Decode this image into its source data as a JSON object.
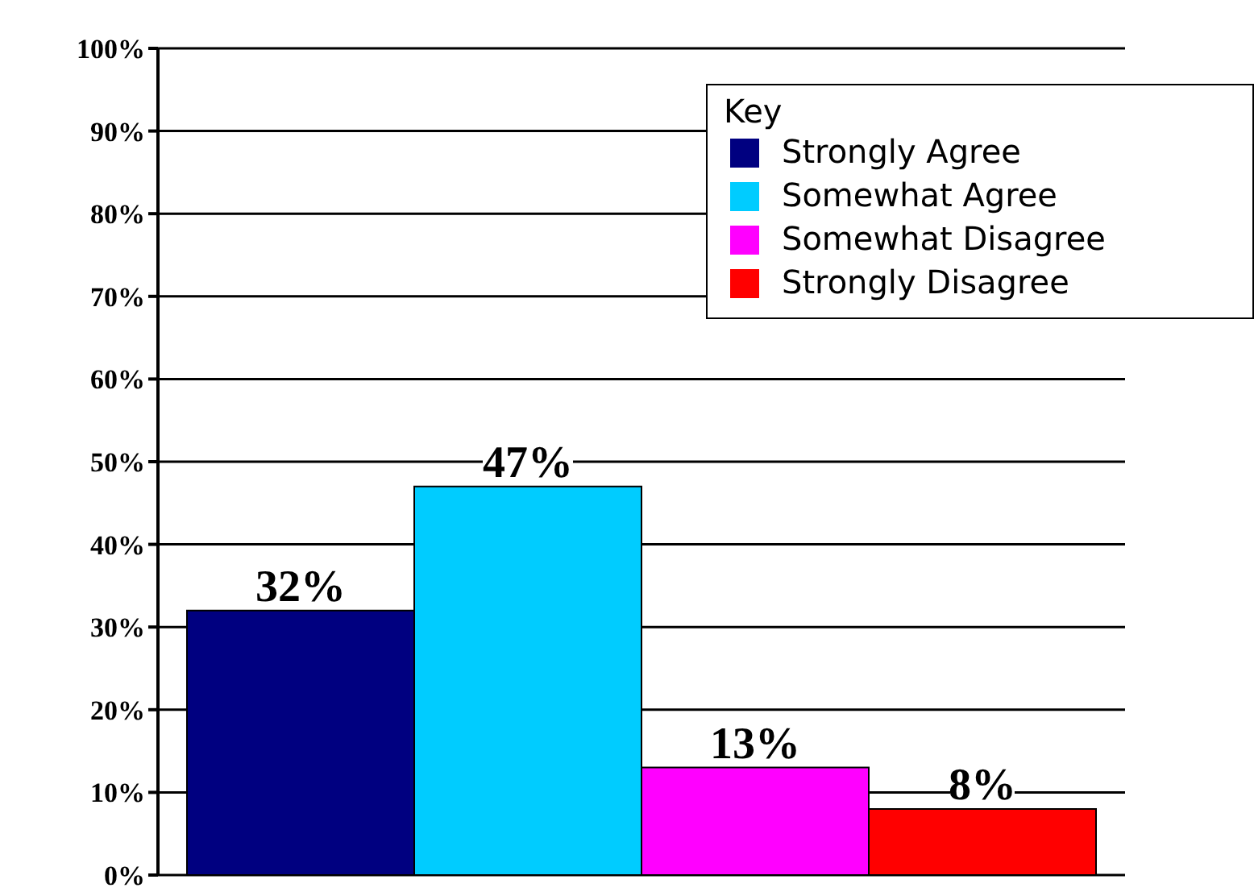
{
  "chart_data": {
    "type": "bar",
    "categories": [
      null
    ],
    "legend_title": "Key",
    "legend": "top right",
    "grid": "y",
    "ylim": [
      0,
      100
    ],
    "yticks": [
      {
        "value": 0,
        "label": "0%"
      },
      {
        "value": 10,
        "label": "10%"
      },
      {
        "value": 20,
        "label": "20%"
      },
      {
        "value": 30,
        "label": "30%"
      },
      {
        "value": 40,
        "label": "40%"
      },
      {
        "value": 50,
        "label": "50%"
      },
      {
        "value": 60,
        "label": "60%"
      },
      {
        "value": 70,
        "label": "70%"
      },
      {
        "value": 80,
        "label": "80%"
      },
      {
        "value": 90,
        "label": "90%"
      },
      {
        "value": 100,
        "label": "100%"
      }
    ],
    "series": [
      {
        "name": "Strongly Agree",
        "color": "#000080",
        "values": [
          32
        ],
        "value_labels": [
          "32%"
        ]
      },
      {
        "name": "Somewhat Agree",
        "color": "#00ccff",
        "values": [
          47
        ],
        "value_labels": [
          "47%"
        ]
      },
      {
        "name": "Somewhat Disagree",
        "color": "#ff00ff",
        "values": [
          13
        ],
        "value_labels": [
          "13%"
        ]
      },
      {
        "name": "Strongly Disagree",
        "color": "#ff0000",
        "values": [
          8
        ],
        "value_labels": [
          "8%"
        ]
      }
    ]
  }
}
